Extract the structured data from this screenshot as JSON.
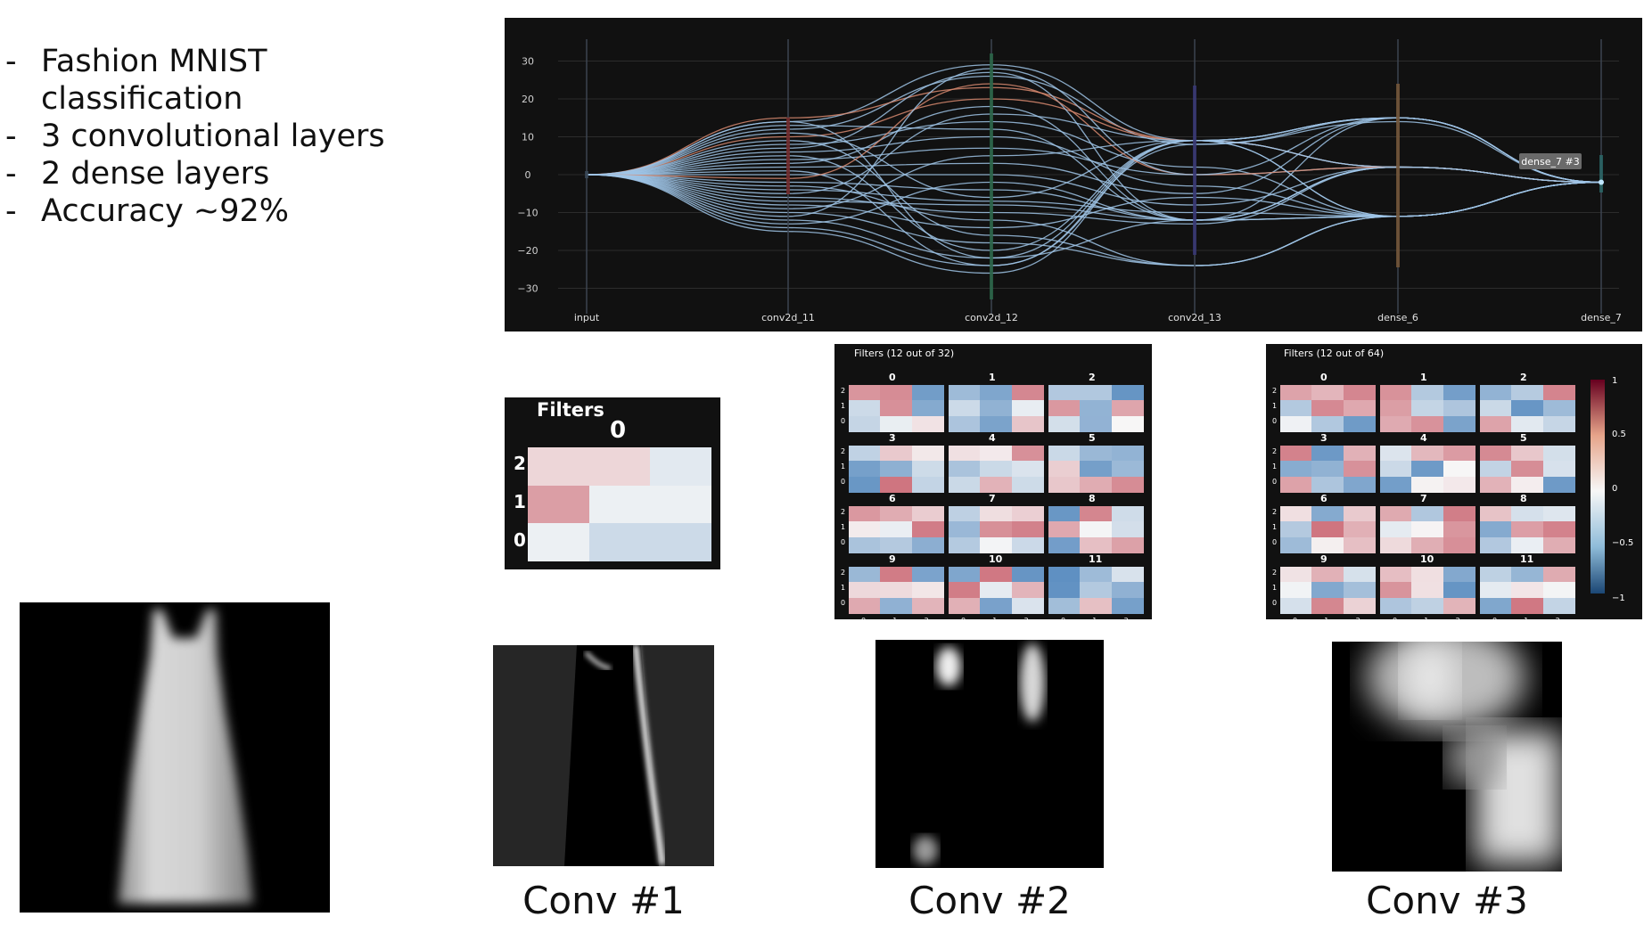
{
  "bullets": [
    "Fashion MNIST classification",
    "3 convolutional layers",
    "2 dense layers",
    "Accuracy ~92%"
  ],
  "parallel_plot": {
    "axes": [
      "input",
      "conv2d_11",
      "conv2d_12",
      "conv2d_13",
      "dense_6",
      "dense_7"
    ],
    "y_ticks": [
      "30",
      "20",
      "10",
      "0",
      "−10",
      "−20",
      "−30"
    ],
    "tooltip": "dense_7 #3"
  },
  "filters_small": {
    "title": "Filters",
    "filter_index": "0",
    "row_labels": [
      "2",
      "1",
      "0"
    ],
    "values": [
      [
        0.15,
        0.15,
        -0.1
      ],
      [
        0.4,
        -0.05,
        -0.05
      ],
      [
        -0.05,
        -0.2,
        -0.2
      ]
    ]
  },
  "filters_32": {
    "title": "Filters (12 out of 32)",
    "indices": [
      "0",
      "1",
      "2",
      "3",
      "4",
      "5",
      "6",
      "7",
      "8",
      "9",
      "10",
      "11"
    ],
    "row_labels": [
      "2",
      "1",
      "0"
    ],
    "col_labels": [
      "0",
      "1",
      "2"
    ]
  },
  "filters_64": {
    "title": "Filters (12 out of 64)",
    "indices": [
      "0",
      "1",
      "2",
      "3",
      "4",
      "5",
      "6",
      "7",
      "8",
      "9",
      "10",
      "11"
    ],
    "row_labels": [
      "2",
      "1",
      "0"
    ],
    "col_labels": [
      "0",
      "1",
      "2"
    ],
    "colorbar_ticks": [
      "1",
      "0.5",
      "0",
      "−0.5",
      "−1"
    ]
  },
  "captions": {
    "conv1": "Conv #1",
    "conv2": "Conv #2",
    "conv3": "Conv #3"
  },
  "colors": {
    "panel_bg": "#111111",
    "line_blue": "#9fc4e6",
    "line_orange": "#d88a70",
    "heat_pos": "#b2182b",
    "heat_neg": "#2166ac"
  }
}
